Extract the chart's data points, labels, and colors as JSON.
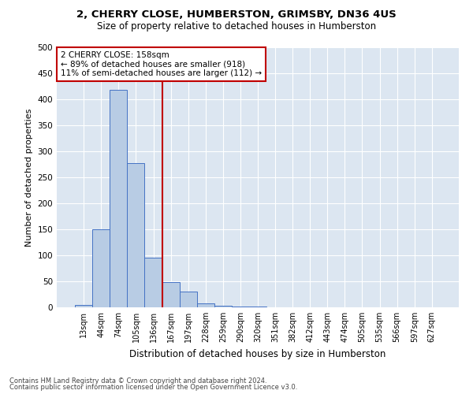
{
  "title": "2, CHERRY CLOSE, HUMBERSTON, GRIMSBY, DN36 4US",
  "subtitle": "Size of property relative to detached houses in Humberston",
  "xlabel": "Distribution of detached houses by size in Humberston",
  "ylabel": "Number of detached properties",
  "bar_color": "#b8cce4",
  "bar_edge_color": "#4472c4",
  "background_color": "#dce6f1",
  "categories": [
    "13sqm",
    "44sqm",
    "74sqm",
    "105sqm",
    "136sqm",
    "167sqm",
    "197sqm",
    "228sqm",
    "259sqm",
    "290sqm",
    "320sqm",
    "351sqm",
    "382sqm",
    "412sqm",
    "443sqm",
    "474sqm",
    "505sqm",
    "535sqm",
    "566sqm",
    "597sqm",
    "627sqm"
  ],
  "values": [
    5,
    150,
    418,
    278,
    95,
    48,
    30,
    8,
    3,
    2,
    1,
    0,
    0,
    0,
    0,
    0,
    0,
    0,
    0,
    0,
    0
  ],
  "ylim": [
    0,
    500
  ],
  "yticks": [
    0,
    50,
    100,
    150,
    200,
    250,
    300,
    350,
    400,
    450,
    500
  ],
  "property_label": "2 CHERRY CLOSE: 158sqm",
  "annotation_line1": "← 89% of detached houses are smaller (918)",
  "annotation_line2": "11% of semi-detached houses are larger (112) →",
  "vline_x": 4.5,
  "footnote1": "Contains HM Land Registry data © Crown copyright and database right 2024.",
  "footnote2": "Contains public sector information licensed under the Open Government Licence v3.0."
}
